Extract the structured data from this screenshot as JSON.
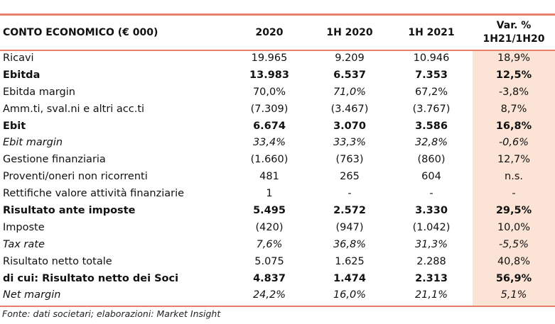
{
  "header": {
    "title": "CONTO ECONOMICO (€ 000)",
    "col_2020": "2020",
    "col_1h2020": "1H 2020",
    "col_1h2021": "1H 2021",
    "col_var_line1": "Var. %",
    "col_var_line2": "1H21/1H20"
  },
  "rows": [
    {
      "label": "Ricavi",
      "v2020": "19.965",
      "h2020": "9.209",
      "h2021": "10.946",
      "var": "18,9%"
    },
    {
      "label": "Ebitda",
      "v2020": "13.983",
      "h2020": "6.537",
      "h2021": "7.353",
      "var": "12,5%"
    },
    {
      "label": "Ebitda margin",
      "v2020": "70,0%",
      "h2020": "71,0%",
      "h2021": "67,2%",
      "var": "-3,8%"
    },
    {
      "label": "Amm.ti, sval.ni e altri acc.ti",
      "v2020": "(7.309)",
      "h2020": "(3.467)",
      "h2021": "(3.767)",
      "var": "8,7%"
    },
    {
      "label": "Ebit",
      "v2020": "6.674",
      "h2020": "3.070",
      "h2021": "3.586",
      "var": "16,8%"
    },
    {
      "label": "Ebit margin",
      "v2020": "33,4%",
      "h2020": "33,3%",
      "h2021": "32,8%",
      "var": "-0,6%"
    },
    {
      "label": "Gestione finanziaria",
      "v2020": "(1.660)",
      "h2020": "(763)",
      "h2021": "(860)",
      "var": "12,7%"
    },
    {
      "label": "Proventi/oneri non ricorrenti",
      "v2020": "481",
      "h2020": "265",
      "h2021": "604",
      "var": "n.s."
    },
    {
      "label": "Rettifiche valore attività finanziarie",
      "v2020": "1",
      "h2020": "-",
      "h2021": "-",
      "var": "-"
    },
    {
      "label": "Risultato ante imposte",
      "v2020": "5.495",
      "h2020": "2.572",
      "h2021": "3.330",
      "var": "29,5%"
    },
    {
      "label": "Imposte",
      "v2020": "(420)",
      "h2020": "(947)",
      "h2021": "(1.042)",
      "var": "10,0%"
    },
    {
      "label": "Tax rate",
      "v2020": "7,6%",
      "h2020": "36,8%",
      "h2021": "31,3%",
      "var": "-5,5%"
    },
    {
      "label": "Risultato netto totale",
      "v2020": "5.075",
      "h2020": "1.625",
      "h2021": "2.288",
      "var": "40,8%"
    },
    {
      "label": "di cui: Risultato netto dei Soci",
      "v2020": "4.837",
      "h2020": "1.474",
      "h2021": "2.313",
      "var": "56,9%"
    },
    {
      "label": "Net margin",
      "v2020": "24,2%",
      "h2020": "16,0%",
      "h2021": "21,1%",
      "var": "5,1%"
    }
  ],
  "source": "Fonte: dati societari; elaborazioni: Market Insight",
  "colors": {
    "accent_line": "#e9806a",
    "var_column_bg": "#fbe4d5"
  }
}
